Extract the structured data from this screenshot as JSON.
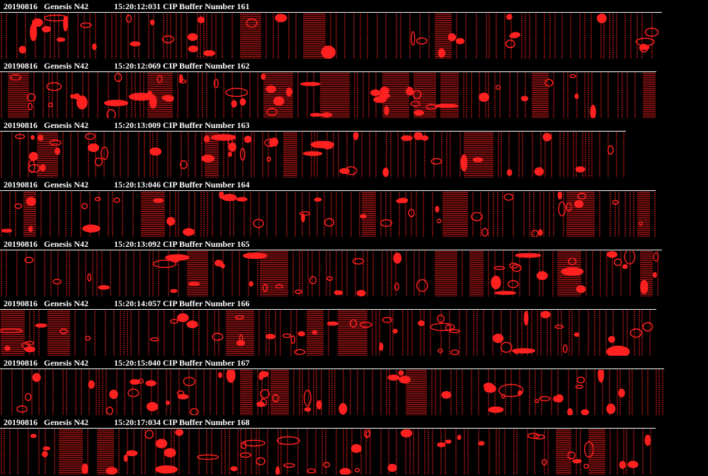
{
  "frames": [
    {
      "date": "20190816",
      "probe": "Genesis N42",
      "caption": "15:20:12:031 CIP Buffer Number 161"
    },
    {
      "date": "20190816",
      "probe": "Genesis N42",
      "caption": "15:20:12:069 CIP Buffer Number 162"
    },
    {
      "date": "20190816",
      "probe": "Genesis N42",
      "caption": "15:20:13:009 CIP Buffer Number 163"
    },
    {
      "date": "20190816",
      "probe": "Genesis N42",
      "caption": "15:20:13:046 CIP Buffer Number 164"
    },
    {
      "date": "20190816",
      "probe": "Genesis N42",
      "caption": "15:20:13:092 CIP Buffer Number 165"
    },
    {
      "date": "20190816",
      "probe": "Genesis N42",
      "caption": "15:20:14:057 CIP Buffer Number 166"
    },
    {
      "date": "20190816",
      "probe": "Genesis N42",
      "caption": "15:20:15:040 CIP Buffer Number 167"
    },
    {
      "date": "20190816",
      "probe": "Genesis N42",
      "caption": "15:20:17:034 CIP Buffer Number 168"
    }
  ],
  "colors": {
    "particle": "#ff2020",
    "background": "#000000",
    "text": "#ffffff"
  }
}
